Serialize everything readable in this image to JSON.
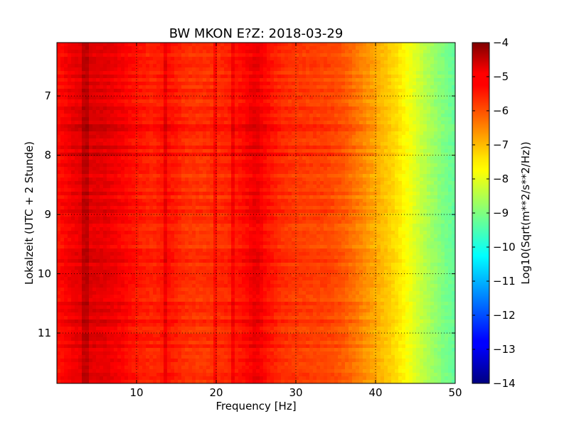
{
  "chart_data": {
    "type": "heatmap",
    "title": "BW MKON E?Z: 2018-03-29",
    "xlabel": "Frequency [Hz]",
    "ylabel": "Lokalzeit (UTC + 2 Stunde)",
    "xlim": [
      0,
      50
    ],
    "ylim": [
      6.1,
      11.85
    ],
    "y_axis_inverted": true,
    "x_ticks": [
      10,
      20,
      30,
      40,
      50
    ],
    "x_tick_labels": [
      "10",
      "20",
      "30",
      "40",
      "50"
    ],
    "y_ticks": [
      7,
      8,
      9,
      10,
      11
    ],
    "y_tick_labels": [
      "7",
      "8",
      "9",
      "10",
      "11"
    ],
    "grid": true,
    "colormap": "jet",
    "colorbar": {
      "label": "Log10(Sqrt(m**2/s**2/Hz))",
      "range": [
        -14,
        -4
      ],
      "ticks": [
        -4,
        -5,
        -6,
        -7,
        -8,
        -9,
        -10,
        -11,
        -12,
        -13,
        -14
      ],
      "tick_labels": [
        "−4",
        "−5",
        "−6",
        "−7",
        "−8",
        "−9",
        "−10",
        "−11",
        "−12",
        "−13",
        "−14"
      ]
    },
    "frequency_profile": {
      "frequency_hz": [
        0,
        2,
        4,
        6,
        8,
        10,
        12,
        14,
        16,
        18,
        20,
        22,
        24,
        25,
        26,
        28,
        30,
        32,
        34,
        36,
        38,
        40,
        42,
        44,
        46,
        48,
        50
      ],
      "log_amplitude": [
        -5.4,
        -5.1,
        -4.95,
        -5.0,
        -5.2,
        -5.45,
        -5.6,
        -5.4,
        -5.7,
        -5.75,
        -5.7,
        -5.55,
        -5.25,
        -5.05,
        -5.3,
        -5.65,
        -5.8,
        -5.85,
        -5.9,
        -6.1,
        -6.5,
        -6.9,
        -7.3,
        -7.8,
        -8.4,
        -8.9,
        -9.3
      ]
    },
    "notes_features": {
      "vertical_lines_hz": [
        3.5,
        13.5,
        20,
        22
      ]
    }
  }
}
